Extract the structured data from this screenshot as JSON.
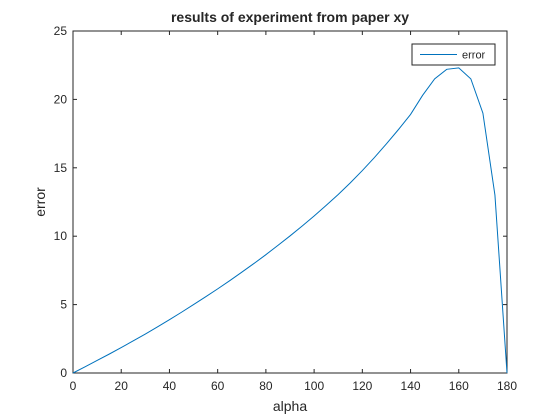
{
  "colors": {
    "background": "#ffffff",
    "axes": "#262626",
    "series": "#0072bd"
  },
  "chart_data": {
    "type": "line",
    "title": "results of experiment from paper xy",
    "xlabel": "alpha",
    "ylabel": "error",
    "xlim": [
      0,
      180
    ],
    "ylim": [
      0,
      25
    ],
    "xticks": [
      0,
      20,
      40,
      60,
      80,
      100,
      120,
      140,
      160,
      180
    ],
    "yticks": [
      0,
      5,
      10,
      15,
      20,
      25
    ],
    "grid": false,
    "legend_position": "top-right",
    "series": [
      {
        "name": "error",
        "x": [
          0,
          5,
          10,
          15,
          20,
          25,
          30,
          35,
          40,
          45,
          50,
          55,
          60,
          65,
          70,
          75,
          80,
          85,
          90,
          95,
          100,
          105,
          110,
          115,
          120,
          125,
          130,
          135,
          140,
          145,
          150,
          155,
          160,
          165,
          170,
          175,
          180
        ],
        "y": [
          0,
          0.45,
          0.92,
          1.38,
          1.86,
          2.35,
          2.85,
          3.37,
          3.9,
          4.44,
          5.0,
          5.57,
          6.15,
          6.75,
          7.37,
          8.0,
          8.65,
          9.33,
          10.02,
          10.74,
          11.48,
          12.25,
          13.05,
          13.9,
          14.8,
          15.75,
          16.75,
          17.8,
          18.9,
          20.3,
          21.5,
          22.2,
          22.3,
          21.5,
          19.0,
          13.0,
          0
        ]
      }
    ]
  }
}
